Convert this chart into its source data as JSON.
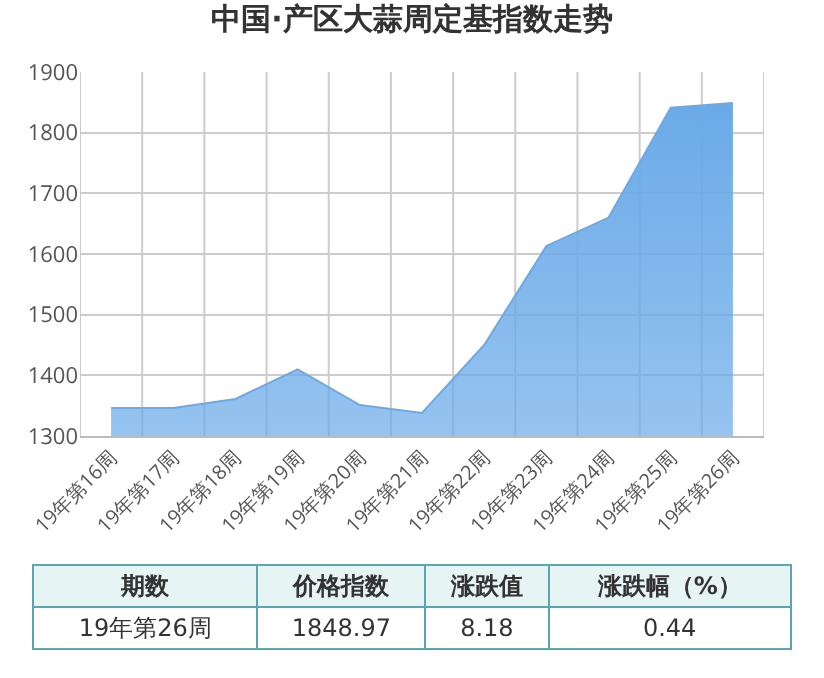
{
  "chart_data": {
    "type": "area",
    "title": "中国·产区大蒜周定基指数走势",
    "categories": [
      "19年第16周",
      "19年第17周",
      "19年第18周",
      "19年第19周",
      "19年第20周",
      "19年第21周",
      "19年第22周",
      "19年第23周",
      "19年第24周",
      "19年第25周",
      "19年第26周"
    ],
    "values": [
      1346,
      1346,
      1361,
      1410,
      1351,
      1338,
      1450,
      1613,
      1660,
      1841,
      1848.97
    ],
    "color": "#6aaae8",
    "ylim": [
      1300,
      1900
    ],
    "yticks": [
      1300,
      1400,
      1500,
      1600,
      1700,
      1800,
      1900
    ],
    "grid": true,
    "legend": false,
    "annotations": [
      "期数",
      "价格指数",
      "涨跌值",
      "涨跌幅（%）",
      "19年第26周",
      "1848.97",
      "8.18",
      "0.44"
    ]
  }
}
